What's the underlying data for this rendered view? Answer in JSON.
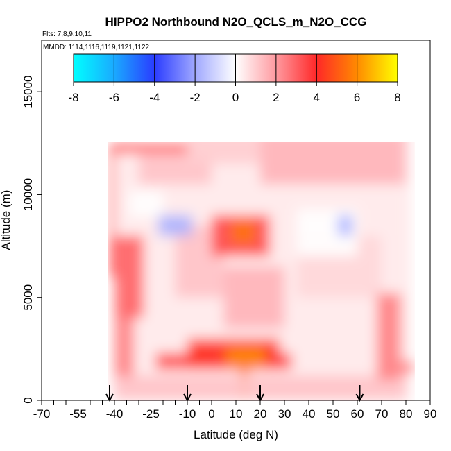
{
  "chart_data": {
    "type": "heatmap",
    "title": "HIPPO2 Northbound N2O_QCLS_m_N2O_CCG",
    "flights_label": "Flts: 7,8,9,10,11",
    "mmdd_label": "MMDD: 1114,1116,1119,1121,1122",
    "xlabel": "Latitude (deg N)",
    "ylabel": "Altitude (m)",
    "xlim": [
      -70,
      90
    ],
    "ylim": [
      0,
      17500
    ],
    "x_ticks": [
      -70,
      -55,
      -40,
      -25,
      -10,
      0,
      10,
      20,
      30,
      40,
      50,
      60,
      70,
      80,
      90
    ],
    "x_minor_ticks": [
      -65,
      -60,
      -50,
      -45,
      -35,
      -30,
      -20,
      -15,
      -5
    ],
    "y_ticks": [
      0,
      5000,
      10000,
      15000
    ],
    "colorbar": {
      "range": [
        -8,
        8
      ],
      "ticks": [
        -8,
        -6,
        -4,
        -2,
        0,
        2,
        4,
        6,
        8
      ],
      "stops": [
        {
          "v": -8,
          "c": "#00ffff"
        },
        {
          "v": -6,
          "c": "#1aaaff"
        },
        {
          "v": -4,
          "c": "#2a3cff"
        },
        {
          "v": -2,
          "c": "#a0a8ff"
        },
        {
          "v": 0,
          "c": "#ffffff"
        },
        {
          "v": 2,
          "c": "#ff9aa0"
        },
        {
          "v": 4,
          "c": "#ff2828"
        },
        {
          "v": 6,
          "c": "#ff8a00"
        },
        {
          "v": 8,
          "c": "#ffff00"
        }
      ]
    },
    "arrows_lat": [
      -42,
      -10,
      20,
      61
    ],
    "regions": [
      {
        "lat": [
          -41,
          82
        ],
        "alt": [
          0,
          13300
        ],
        "value": 0.4
      },
      {
        "lat": [
          -42,
          -10
        ],
        "alt": [
          12000,
          12500
        ],
        "value": 3.0
      },
      {
        "lat": [
          -42,
          -40
        ],
        "alt": [
          6000,
          12300
        ],
        "value": 3.2
      },
      {
        "lat": [
          -40,
          -28
        ],
        "alt": [
          4000,
          8000
        ],
        "value": 3.0
      },
      {
        "lat": [
          -40,
          -32
        ],
        "alt": [
          1000,
          4000
        ],
        "value": 2.5
      },
      {
        "lat": [
          -30,
          0
        ],
        "alt": [
          10500,
          12000
        ],
        "value": 1.2
      },
      {
        "lat": [
          -10,
          20
        ],
        "alt": [
          11500,
          13000
        ],
        "value": 1.0
      },
      {
        "lat": [
          20,
          80
        ],
        "alt": [
          10500,
          13000
        ],
        "value": 1.5
      },
      {
        "lat": [
          -15,
          5
        ],
        "alt": [
          5000,
          8500
        ],
        "value": 1.2
      },
      {
        "lat": [
          5,
          30
        ],
        "alt": [
          3500,
          6500
        ],
        "value": 1.5
      },
      {
        "lat": [
          35,
          70
        ],
        "alt": [
          5000,
          8000
        ],
        "value": 0.8
      },
      {
        "lat": [
          -34,
          -20
        ],
        "alt": [
          8900,
          10200
        ],
        "value": 0.0
      },
      {
        "lat": [
          35,
          60
        ],
        "alt": [
          7000,
          9300
        ],
        "value": 0.0
      },
      {
        "lat": [
          -22,
          -8
        ],
        "alt": [
          8000,
          9000
        ],
        "value": -1.8
      },
      {
        "lat": [
          52,
          58
        ],
        "alt": [
          8000,
          9000
        ],
        "value": -1.8
      },
      {
        "lat": [
          0,
          24
        ],
        "alt": [
          7000,
          9000
        ],
        "value": 3.5
      },
      {
        "lat": [
          8,
          18
        ],
        "alt": [
          7600,
          8800
        ],
        "value": 5.5
      },
      {
        "lat": [
          -23,
          33
        ],
        "alt": [
          1500,
          2300
        ],
        "value": 3.5
      },
      {
        "lat": [
          -10,
          28
        ],
        "alt": [
          1500,
          3000
        ],
        "value": 4.2
      },
      {
        "lat": [
          6,
          22
        ],
        "alt": [
          1600,
          2600
        ],
        "value": 6.0
      },
      {
        "lat": [
          12,
          15
        ],
        "alt": [
          0,
          1800
        ],
        "value": 5.5
      },
      {
        "lat": [
          -40,
          80
        ],
        "alt": [
          0,
          1200
        ],
        "value": 1.2
      },
      {
        "lat": [
          68,
          78
        ],
        "alt": [
          1000,
          5200
        ],
        "value": 2.5
      },
      {
        "lat": [
          78,
          83
        ],
        "alt": [
          1300,
          1900
        ],
        "value": 2.5
      }
    ]
  }
}
